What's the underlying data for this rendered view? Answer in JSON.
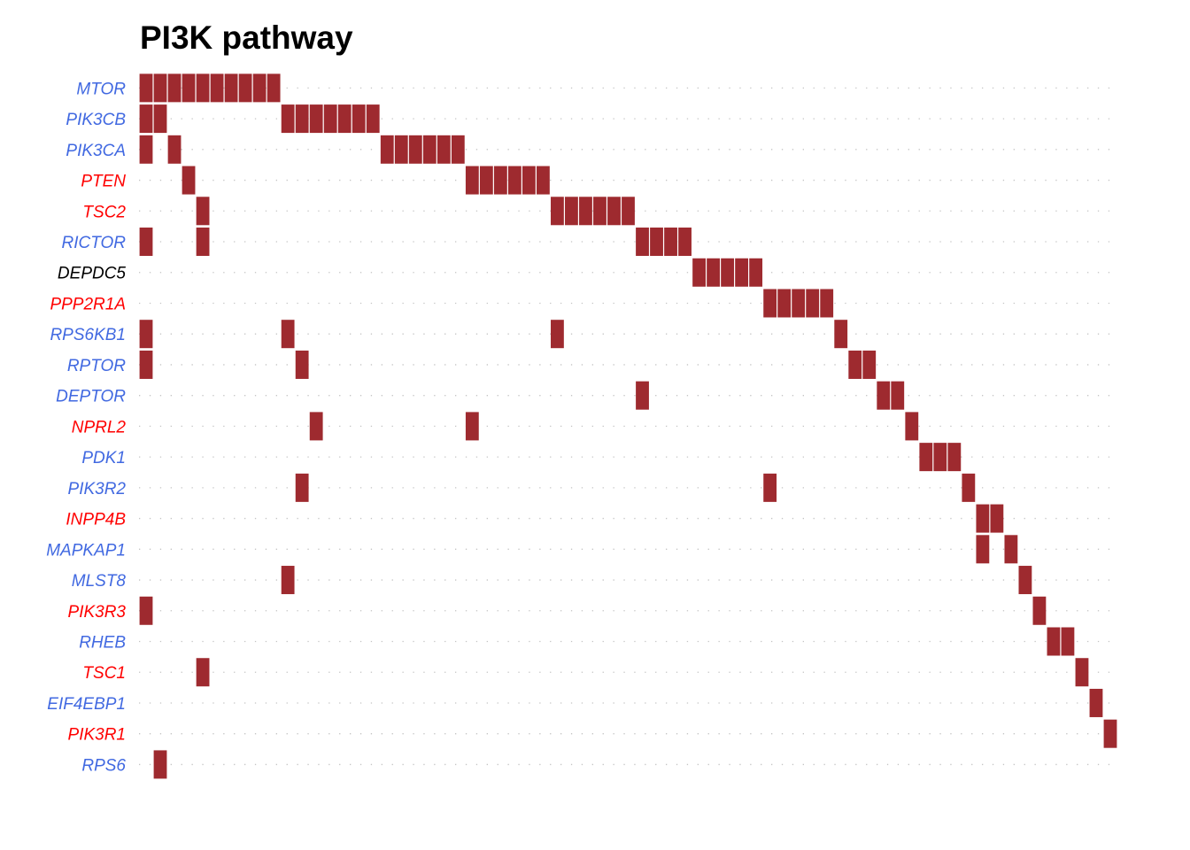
{
  "chart_data": {
    "type": "heatmap",
    "title": "PI3K pathway",
    "sample_count": 69,
    "mark_color": "#9E2A2F",
    "label_colors": {
      "blue": "#4169E1",
      "red": "#FF0000",
      "black": "#000000"
    },
    "rows": [
      {
        "gene": "MTOR",
        "color": "#4169E1",
        "altered": [
          0,
          1,
          2,
          3,
          4,
          5,
          6,
          7,
          8,
          9
        ]
      },
      {
        "gene": "PIK3CB",
        "color": "#4169E1",
        "altered": [
          0,
          1,
          10,
          11,
          12,
          13,
          14,
          15,
          16
        ]
      },
      {
        "gene": "PIK3CA",
        "color": "#4169E1",
        "altered": [
          0,
          2,
          17,
          18,
          19,
          20,
          21,
          22
        ]
      },
      {
        "gene": "PTEN",
        "color": "#FF0000",
        "altered": [
          3,
          23,
          24,
          25,
          26,
          27,
          28
        ]
      },
      {
        "gene": "TSC2",
        "color": "#FF0000",
        "altered": [
          4,
          29,
          30,
          31,
          32,
          33,
          34
        ]
      },
      {
        "gene": "RICTOR",
        "color": "#4169E1",
        "altered": [
          0,
          4,
          35,
          36,
          37,
          38
        ]
      },
      {
        "gene": "DEPDC5",
        "color": "#000000",
        "altered": [
          39,
          40,
          41,
          42,
          43
        ]
      },
      {
        "gene": "PPP2R1A",
        "color": "#FF0000",
        "altered": [
          44,
          45,
          46,
          47,
          48
        ]
      },
      {
        "gene": "RPS6KB1",
        "color": "#4169E1",
        "altered": [
          0,
          10,
          29,
          49
        ]
      },
      {
        "gene": "RPTOR",
        "color": "#4169E1",
        "altered": [
          0,
          11,
          50,
          51
        ]
      },
      {
        "gene": "DEPTOR",
        "color": "#4169E1",
        "altered": [
          35,
          52,
          53
        ]
      },
      {
        "gene": "NPRL2",
        "color": "#FF0000",
        "altered": [
          12,
          23,
          54
        ]
      },
      {
        "gene": "PDK1",
        "color": "#4169E1",
        "altered": [
          55,
          56,
          57
        ]
      },
      {
        "gene": "PIK3R2",
        "color": "#4169E1",
        "altered": [
          11,
          44,
          58
        ]
      },
      {
        "gene": "INPP4B",
        "color": "#FF0000",
        "altered": [
          59,
          60
        ]
      },
      {
        "gene": "MAPKAP1",
        "color": "#4169E1",
        "altered": [
          59,
          61
        ]
      },
      {
        "gene": "MLST8",
        "color": "#4169E1",
        "altered": [
          10,
          62
        ]
      },
      {
        "gene": "PIK3R3",
        "color": "#FF0000",
        "altered": [
          0,
          63
        ]
      },
      {
        "gene": "RHEB",
        "color": "#4169E1",
        "altered": [
          64,
          65
        ]
      },
      {
        "gene": "TSC1",
        "color": "#FF0000",
        "altered": [
          4,
          66
        ]
      },
      {
        "gene": "EIF4EBP1",
        "color": "#4169E1",
        "altered": [
          67
        ]
      },
      {
        "gene": "PIK3R1",
        "color": "#FF0000",
        "altered": [
          68
        ]
      },
      {
        "gene": "RPS6",
        "color": "#4169E1",
        "altered": [
          1
        ]
      }
    ]
  }
}
